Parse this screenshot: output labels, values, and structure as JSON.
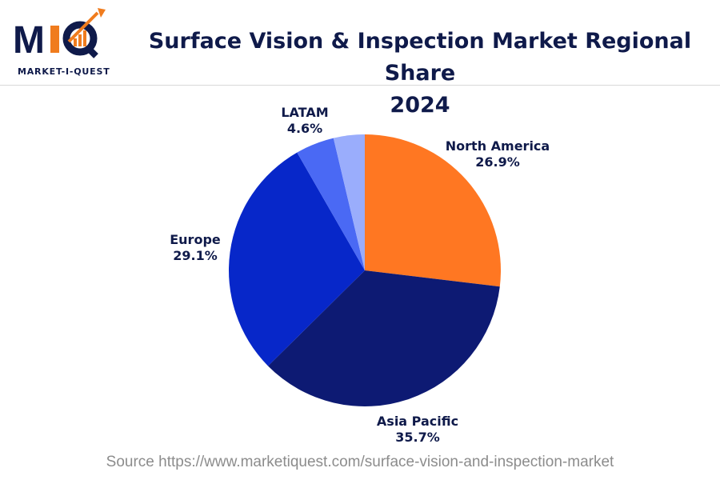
{
  "header": {
    "logo_mark": "MIQ",
    "logo_text": "MARKET-I-QUEST",
    "title_line1": "Surface Vision & Inspection Market Regional Share",
    "title_line2": "2024"
  },
  "source_text": "Source https://www.marketiquest.com/surface-vision-and-inspection-market",
  "colors": {
    "title": "#0f1a4a",
    "logo_orange": "#f07c1e",
    "logo_navy": "#0f1a4a"
  },
  "chart_data": {
    "type": "pie",
    "start_angle_deg": 0,
    "direction": "clockwise",
    "slices": [
      {
        "label": "North America",
        "value": 26.9,
        "value_label": "26.9%",
        "color": "#ff7722"
      },
      {
        "label": "Asia Pacific",
        "value": 35.7,
        "value_label": "35.7%",
        "color": "#0d1a73"
      },
      {
        "label": "Europe",
        "value": 29.1,
        "value_label": "29.1%",
        "color": "#0727c9"
      },
      {
        "label": "LATAM",
        "value": 4.6,
        "value_label": "4.6%",
        "color": "#4a69f4"
      },
      {
        "label": "",
        "value": 3.7,
        "value_label": "",
        "color": "#9aadfc"
      }
    ]
  }
}
